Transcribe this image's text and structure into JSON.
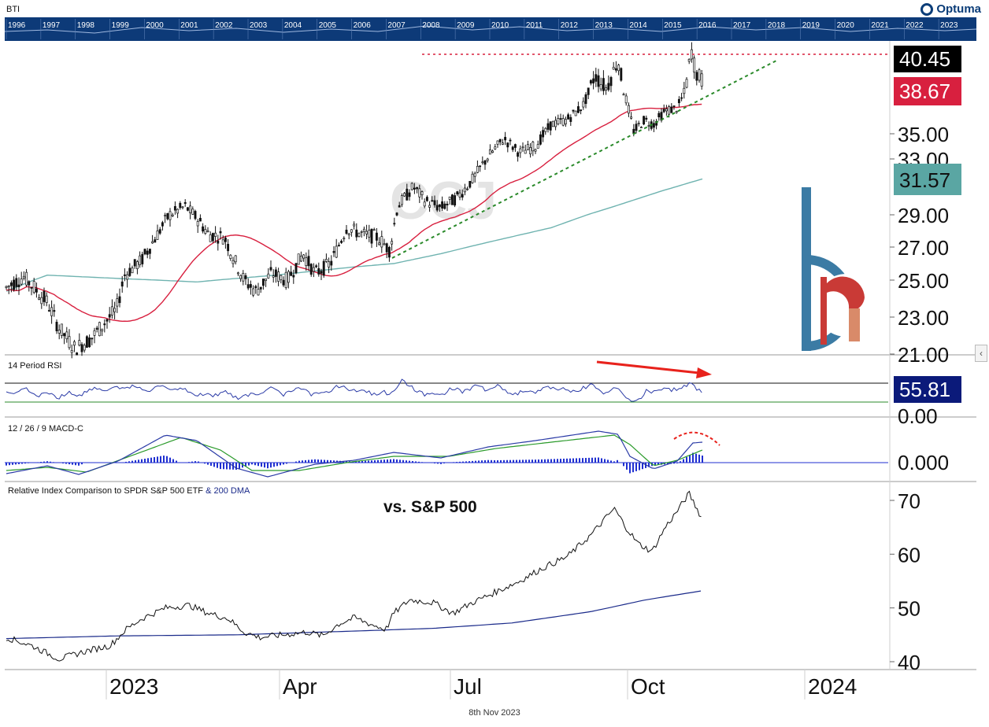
{
  "symbol": "BTI",
  "watermark": "CCJ",
  "brand": "Optuma",
  "footer_date": "8th Nov 2023",
  "overview_years": [
    "1996",
    "1997",
    "1998",
    "1999",
    "2000",
    "2001",
    "2002",
    "2003",
    "2004",
    "2005",
    "2006",
    "2007",
    "2008",
    "2009",
    "2010",
    "2011",
    "2012",
    "2013",
    "2014",
    "2015",
    "2016",
    "2017",
    "2018",
    "2019",
    "2020",
    "2021",
    "2022",
    "2023"
  ],
  "colors": {
    "overview_bg": "#0d3a78",
    "price_tag_last": "#000000",
    "price_tag_ma50": "#d8203f",
    "price_tag_ma200": "#5aa6a3",
    "rsi_tag": "#0b1a7a",
    "ma50": "#d8203f",
    "ma200": "#6fb3b0",
    "trendline": "#2a8a2a",
    "resistance": "#d8203f",
    "rsi_line": "#2a3aa6",
    "macd_line": "#2a3aa6",
    "signal_line": "#2a9a2a",
    "hist": "#1f2fd0",
    "relative_line": "#111111",
    "relative_ma": "#1a2a8a"
  },
  "chart_data": [
    {
      "type": "candlestick",
      "panel": "price",
      "title": "",
      "y_ticks": [
        21,
        23,
        25,
        27,
        29,
        33,
        35
      ],
      "y_tick_labels": [
        "21.00",
        "23.00",
        "25.00",
        "27.00",
        "29.00",
        "33.00",
        "35.00"
      ],
      "last_price": "40.45",
      "ma50_value": "38.67",
      "ma200_value": "31.57",
      "resistance_level": 40.45,
      "x_labels": [
        "2023",
        "Apr",
        "Jul",
        "Oct",
        "2024"
      ]
    },
    {
      "type": "line",
      "panel": "rsi",
      "title": "14 Period RSI",
      "value": "55.81",
      "y_tick_labels": [
        "0.00"
      ],
      "upper_band": 70,
      "lower_band": 30
    },
    {
      "type": "line",
      "panel": "macd",
      "title": "12 / 26 / 9 MACD-C",
      "y_tick_labels": [
        "0.000"
      ]
    },
    {
      "type": "line",
      "panel": "relative",
      "title": "Relative Index Comparison to SPDR S&P 500 ETF",
      "title_suffix": "& 200 DMA",
      "annotation": "vs. S&P 500",
      "y_ticks": [
        40,
        50,
        60,
        70
      ],
      "y_tick_labels": [
        "40",
        "50",
        "60",
        "70"
      ]
    }
  ]
}
